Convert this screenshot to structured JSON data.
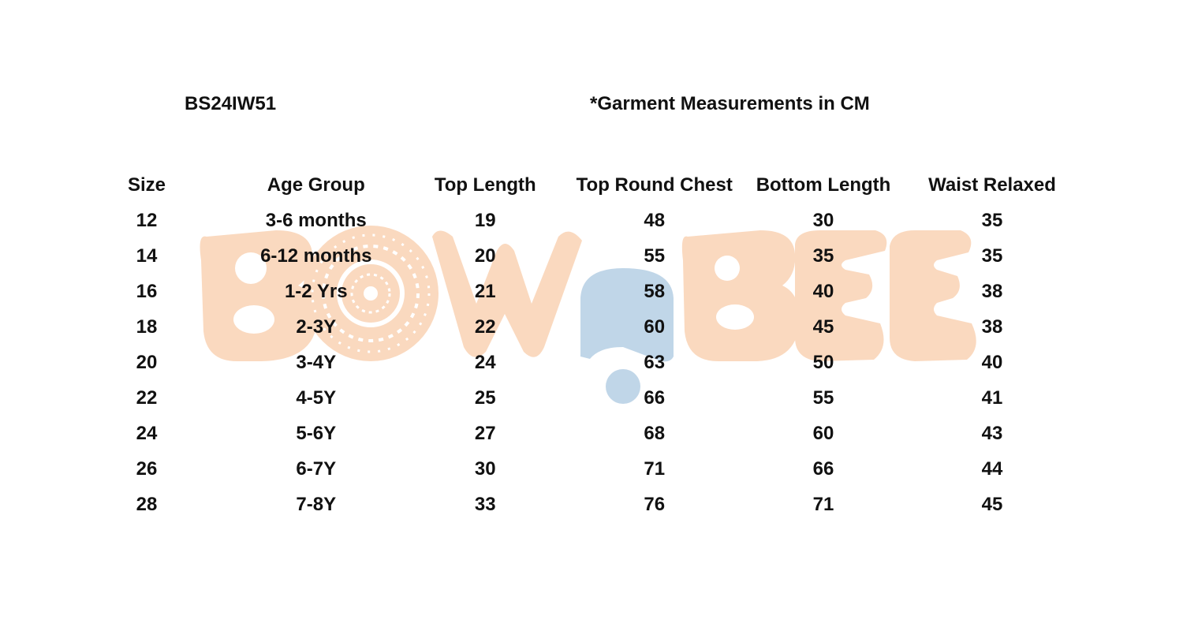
{
  "header": {
    "style_code": "BS24IW51",
    "note": "*Garment Measurements in CM"
  },
  "watermark": {
    "text": "BOWnBEE",
    "colors": {
      "peach": "#fad9bf",
      "blue": "#c0d6e8"
    }
  },
  "table": {
    "columns": [
      "Size",
      "Age Group",
      "Top Length",
      "Top Round Chest",
      "Bottom Length",
      "Waist Relaxed"
    ],
    "rows": [
      [
        "12",
        "3-6 months",
        "19",
        "48",
        "30",
        "35"
      ],
      [
        "14",
        "6-12 months",
        "20",
        "55",
        "35",
        "35"
      ],
      [
        "16",
        "1-2 Yrs",
        "21",
        "58",
        "40",
        "38"
      ],
      [
        "18",
        "2-3Y",
        "22",
        "60",
        "45",
        "38"
      ],
      [
        "20",
        "3-4Y",
        "24",
        "63",
        "50",
        "40"
      ],
      [
        "22",
        "4-5Y",
        "25",
        "66",
        "55",
        "41"
      ],
      [
        "24",
        "5-6Y",
        "27",
        "68",
        "60",
        "43"
      ],
      [
        "26",
        "6-7Y",
        "30",
        "71",
        "66",
        "44"
      ],
      [
        "28",
        "7-8Y",
        "33",
        "76",
        "71",
        "45"
      ]
    ]
  }
}
